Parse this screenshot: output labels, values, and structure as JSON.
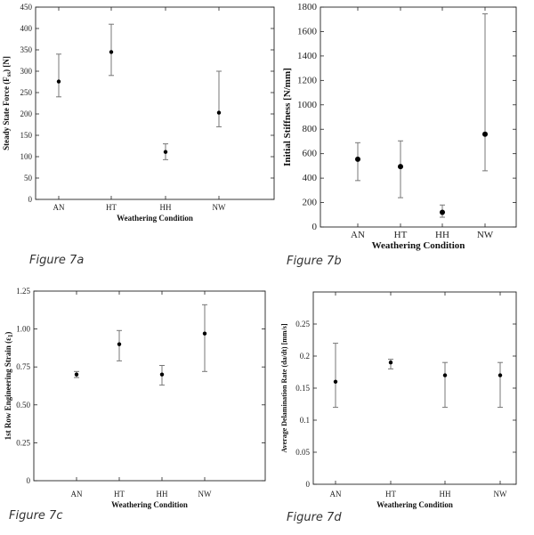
{
  "captions": [
    "Figure 7a",
    "Figure 7b",
    "Figure 7c",
    "Figure 7d"
  ],
  "chart_data": [
    {
      "type": "scatter",
      "errorbars": true,
      "xlabel": "Weathering Condition",
      "ylabel": "Steady State Force (F",
      "ylabel_sub": "ss",
      "ylabel_tail": ") [N]",
      "categories": [
        "AN",
        "HT",
        "HH",
        "NW"
      ],
      "ylim": [
        0,
        450
      ],
      "yticks": [
        0,
        50,
        100,
        150,
        200,
        250,
        300,
        350,
        400,
        450
      ],
      "ytick_labels": [
        "0",
        "50",
        "100",
        "150",
        "200",
        "250",
        "300",
        "350",
        "400",
        "450"
      ],
      "values": [
        276,
        345,
        111,
        203
      ],
      "lower": [
        240,
        290,
        93,
        170
      ],
      "upper": [
        340,
        410,
        130,
        300
      ]
    },
    {
      "type": "scatter",
      "errorbars": true,
      "xlabel": "Weathering Condition",
      "ylabel": "Initial Stiffness [N/mm]",
      "categories": [
        "AN",
        "HT",
        "HH",
        "NW"
      ],
      "ylim": [
        0,
        1800
      ],
      "yticks": [
        0,
        200,
        400,
        600,
        800,
        1000,
        1200,
        1400,
        1600,
        1800
      ],
      "ytick_labels": [
        "0",
        "200",
        "400",
        "600",
        "800",
        "1000",
        "1200",
        "1400",
        "1600",
        "1800"
      ],
      "values": [
        555,
        495,
        120,
        760
      ],
      "lower": [
        380,
        240,
        80,
        460
      ],
      "upper": [
        690,
        705,
        180,
        1745
      ]
    },
    {
      "type": "scatter",
      "errorbars": true,
      "xlabel": "Weathering Condition",
      "ylabel": "1st Row Engineering Strain (ε",
      "ylabel_sub": "1",
      "ylabel_tail": ")",
      "categories": [
        "AN",
        "HT",
        "HH",
        "NW"
      ],
      "ylim": [
        0,
        1.25
      ],
      "yticks": [
        0,
        0.25,
        0.5,
        0.75,
        1.0,
        1.25
      ],
      "ytick_labels": [
        "0",
        "0.25",
        "0.50",
        "0.75",
        "1.00",
        "1.25"
      ],
      "values": [
        0.7,
        0.9,
        0.7,
        0.97
      ],
      "lower": [
        0.68,
        0.79,
        0.63,
        0.72
      ],
      "upper": [
        0.72,
        0.99,
        0.76,
        1.16
      ]
    },
    {
      "type": "scatter",
      "errorbars": true,
      "xlabel": "Weathering Condition",
      "ylabel": "Average Delamination Rate (da/dt) [mm/s]",
      "categories": [
        "AN",
        "HT",
        "HH",
        "NW"
      ],
      "ylim": [
        0,
        0.3
      ],
      "yticks": [
        0,
        0.05,
        0.1,
        0.15,
        0.2,
        0.25
      ],
      "ytick_labels": [
        "0",
        "0.05",
        "0.1",
        "0.15",
        "0.2",
        "0.25"
      ],
      "values": [
        0.16,
        0.19,
        0.17,
        0.17
      ],
      "lower": [
        0.12,
        0.18,
        0.12,
        0.12
      ],
      "upper": [
        0.22,
        0.195,
        0.19,
        0.19
      ]
    }
  ]
}
